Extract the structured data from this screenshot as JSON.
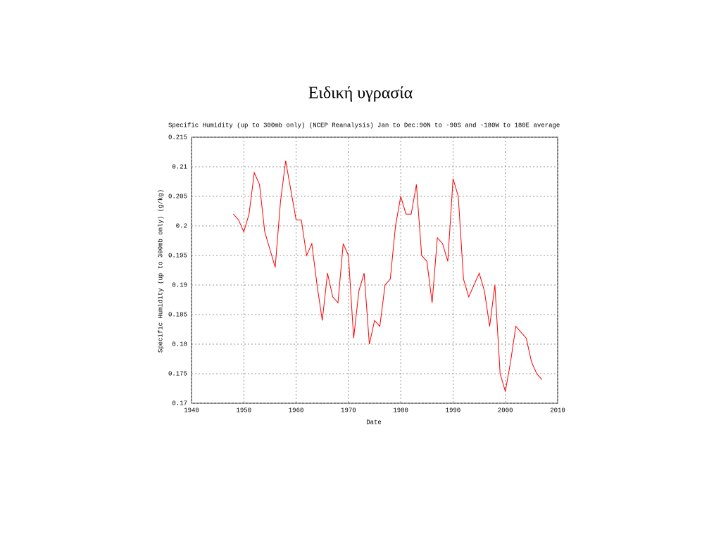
{
  "chart_data": {
    "type": "line",
    "title": "Ειδική υγρασία",
    "subtitle": "Specific Humidity (up to 300mb only) (NCEP Reanalysis) Jan to Dec:90N to -90S and -180W to 180E average",
    "x_label": "Date",
    "y_label": "Specific Humidity (up to 300mb only) (g/kg)",
    "color": "#ff0000",
    "grid": true,
    "x": [
      1948,
      1949,
      1950,
      1951,
      1952,
      1953,
      1954,
      1955,
      1956,
      1957,
      1958,
      1959,
      1960,
      1961,
      1962,
      1963,
      1964,
      1965,
      1966,
      1967,
      1968,
      1969,
      1970,
      1971,
      1972,
      1973,
      1974,
      1975,
      1976,
      1977,
      1978,
      1979,
      1980,
      1981,
      1982,
      1983,
      1984,
      1985,
      1986,
      1987,
      1988,
      1989,
      1990,
      1991,
      1992,
      1993,
      1994,
      1995,
      1996,
      1997,
      1998,
      1999,
      2000,
      2001,
      2002,
      2003,
      2004,
      2005,
      2006,
      2007
    ],
    "values": [
      0.202,
      0.201,
      0.199,
      0.202,
      0.209,
      0.207,
      0.199,
      0.196,
      0.193,
      0.204,
      0.211,
      0.206,
      0.201,
      0.201,
      0.195,
      0.197,
      0.19,
      0.184,
      0.192,
      0.188,
      0.187,
      0.197,
      0.195,
      0.181,
      0.189,
      0.192,
      0.18,
      0.184,
      0.183,
      0.19,
      0.191,
      0.2,
      0.205,
      0.202,
      0.202,
      0.207,
      0.195,
      0.194,
      0.187,
      0.198,
      0.197,
      0.194,
      0.208,
      0.205,
      0.191,
      0.188,
      0.19,
      0.192,
      0.189,
      0.183,
      0.19,
      0.175,
      0.172,
      0.177,
      0.183,
      0.182,
      0.181,
      0.177,
      0.175,
      0.174
    ],
    "xlim": [
      1940,
      2010
    ],
    "xticks": [
      1940,
      1950,
      1960,
      1970,
      1980,
      1990,
      2000,
      2010
    ],
    "ylim": [
      0.17,
      0.215
    ],
    "yticks": [
      0.17,
      0.175,
      0.18,
      0.185,
      0.19,
      0.195,
      0.2,
      0.205,
      0.21,
      0.215
    ]
  }
}
